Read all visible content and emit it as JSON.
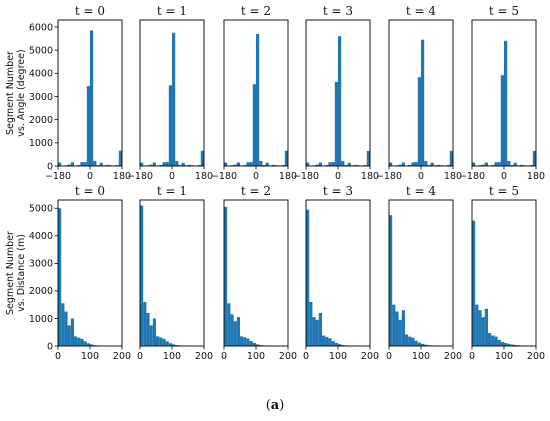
{
  "caption": {
    "open": "(",
    "letter": "a",
    "close": ")"
  },
  "colors": {
    "bar": "#1f77b4",
    "axis": "#000000"
  },
  "row_labels": [
    {
      "line1": "Segment Number",
      "line2": "vs. Angle (degree)"
    },
    {
      "line1": "Segment Number",
      "line2": "vs. Distance (m)"
    }
  ],
  "chart_data": [
    {
      "type": "bar",
      "row": 0,
      "panels": [
        "t = 0",
        "t = 1",
        "t = 2",
        "t = 3",
        "t = 4",
        "t = 5"
      ],
      "xlim": [
        -180,
        180
      ],
      "ylim": [
        0,
        6300
      ],
      "xticks": [
        -180,
        0,
        180
      ],
      "xtick_labels": [
        "−180",
        "0",
        "180"
      ],
      "yticks": [
        0,
        1000,
        2000,
        3000,
        4000,
        5000,
        6000
      ],
      "bin_width": 18,
      "bin_starts": [
        -180,
        -162,
        -144,
        -126,
        -108,
        -90,
        -72,
        -54,
        -36,
        -18,
        0,
        18,
        36,
        54,
        72,
        90,
        108,
        126,
        144,
        162
      ],
      "series": [
        {
          "values": [
            150,
            0,
            30,
            60,
            160,
            0,
            40,
            170,
            170,
            3450,
            5850,
            220,
            40,
            140,
            30,
            50,
            30,
            0,
            40,
            660
          ]
        },
        {
          "values": [
            150,
            0,
            30,
            60,
            150,
            0,
            40,
            160,
            170,
            3480,
            5750,
            220,
            40,
            140,
            30,
            50,
            30,
            0,
            40,
            660
          ]
        },
        {
          "values": [
            150,
            0,
            30,
            60,
            150,
            0,
            40,
            160,
            170,
            3530,
            5700,
            220,
            40,
            140,
            30,
            50,
            30,
            0,
            40,
            660
          ]
        },
        {
          "values": [
            150,
            0,
            30,
            60,
            150,
            0,
            40,
            160,
            170,
            3630,
            5600,
            220,
            40,
            140,
            30,
            50,
            30,
            0,
            40,
            650
          ]
        },
        {
          "values": [
            150,
            0,
            30,
            60,
            150,
            0,
            40,
            160,
            170,
            3830,
            5450,
            220,
            40,
            140,
            30,
            50,
            30,
            0,
            40,
            650
          ]
        },
        {
          "values": [
            150,
            0,
            30,
            60,
            150,
            0,
            40,
            160,
            170,
            3920,
            5400,
            220,
            40,
            140,
            30,
            50,
            30,
            0,
            40,
            650
          ]
        }
      ]
    },
    {
      "type": "bar",
      "row": 1,
      "panels": [
        "t = 0",
        "t = 1",
        "t = 2",
        "t = 3",
        "t = 4",
        "t = 5"
      ],
      "xlim": [
        0,
        200
      ],
      "ylim": [
        0,
        5300
      ],
      "xticks": [
        0,
        100,
        200
      ],
      "xtick_labels": [
        "0",
        "100",
        "200"
      ],
      "yticks": [
        0,
        1000,
        2000,
        3000,
        4000,
        5000
      ],
      "bin_width": 10,
      "bin_starts": [
        0,
        10,
        20,
        30,
        40,
        50,
        60,
        70,
        80,
        90,
        100,
        110,
        120,
        130,
        140,
        150,
        160,
        170,
        180,
        190
      ],
      "series": [
        {
          "values": [
            5000,
            1550,
            1250,
            750,
            1000,
            350,
            300,
            260,
            170,
            100,
            60,
            35,
            20,
            12,
            8,
            5,
            3,
            0,
            0,
            0
          ]
        },
        {
          "values": [
            5100,
            1600,
            1200,
            750,
            1000,
            350,
            310,
            260,
            170,
            100,
            60,
            35,
            20,
            12,
            8,
            5,
            3,
            0,
            0,
            0
          ]
        },
        {
          "values": [
            5050,
            1550,
            1150,
            900,
            1050,
            350,
            320,
            270,
            180,
            110,
            60,
            35,
            20,
            12,
            8,
            5,
            3,
            0,
            0,
            0
          ]
        },
        {
          "values": [
            4950,
            1600,
            1050,
            950,
            1200,
            380,
            330,
            280,
            180,
            110,
            70,
            40,
            25,
            15,
            10,
            6,
            3,
            0,
            0,
            0
          ]
        },
        {
          "values": [
            4750,
            1500,
            1250,
            950,
            1300,
            420,
            340,
            300,
            190,
            120,
            80,
            50,
            30,
            20,
            12,
            8,
            4,
            0,
            0,
            0
          ]
        },
        {
          "values": [
            4550,
            1500,
            1300,
            1050,
            1350,
            470,
            380,
            340,
            220,
            150,
            110,
            80,
            55,
            40,
            30,
            20,
            12,
            6,
            0,
            0
          ]
        }
      ]
    }
  ]
}
